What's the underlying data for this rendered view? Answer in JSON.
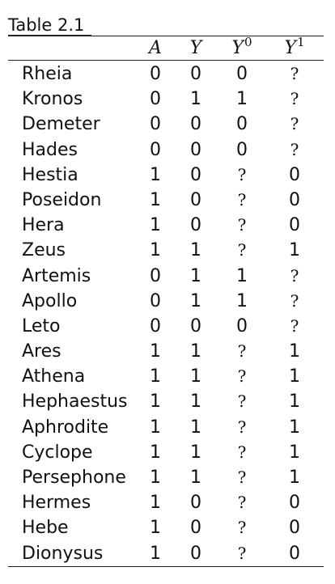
{
  "caption": "Table 2.1",
  "header": {
    "a": "A",
    "y": "Y",
    "y0_base": "Y",
    "y0_sup": "0",
    "y1_base": "Y",
    "y1_sup": "1"
  },
  "rows": [
    {
      "name": "Rheia",
      "a": "0",
      "y": "0",
      "y0": "0",
      "y1": "?"
    },
    {
      "name": "Kronos",
      "a": "0",
      "y": "1",
      "y0": "1",
      "y1": "?"
    },
    {
      "name": "Demeter",
      "a": "0",
      "y": "0",
      "y0": "0",
      "y1": "?"
    },
    {
      "name": "Hades",
      "a": "0",
      "y": "0",
      "y0": "0",
      "y1": "?"
    },
    {
      "name": "Hestia",
      "a": "1",
      "y": "0",
      "y0": "?",
      "y1": "0"
    },
    {
      "name": "Poseidon",
      "a": "1",
      "y": "0",
      "y0": "?",
      "y1": "0"
    },
    {
      "name": "Hera",
      "a": "1",
      "y": "0",
      "y0": "?",
      "y1": "0"
    },
    {
      "name": "Zeus",
      "a": "1",
      "y": "1",
      "y0": "?",
      "y1": "1"
    },
    {
      "name": "Artemis",
      "a": "0",
      "y": "1",
      "y0": "1",
      "y1": "?"
    },
    {
      "name": "Apollo",
      "a": "0",
      "y": "1",
      "y0": "1",
      "y1": "?"
    },
    {
      "name": "Leto",
      "a": "0",
      "y": "0",
      "y0": "0",
      "y1": "?"
    },
    {
      "name": "Ares",
      "a": "1",
      "y": "1",
      "y0": "?",
      "y1": "1"
    },
    {
      "name": "Athena",
      "a": "1",
      "y": "1",
      "y0": "?",
      "y1": "1"
    },
    {
      "name": "Hephaestus",
      "a": "1",
      "y": "1",
      "y0": "?",
      "y1": "1"
    },
    {
      "name": "Aphrodite",
      "a": "1",
      "y": "1",
      "y0": "?",
      "y1": "1"
    },
    {
      "name": "Cyclope",
      "a": "1",
      "y": "1",
      "y0": "?",
      "y1": "1"
    },
    {
      "name": "Persephone",
      "a": "1",
      "y": "1",
      "y0": "?",
      "y1": "1"
    },
    {
      "name": "Hermes",
      "a": "1",
      "y": "0",
      "y0": "?",
      "y1": "0"
    },
    {
      "name": "Hebe",
      "a": "1",
      "y": "0",
      "y0": "?",
      "y1": "0"
    },
    {
      "name": "Dionysus",
      "a": "1",
      "y": "0",
      "y0": "?",
      "y1": "0"
    }
  ]
}
